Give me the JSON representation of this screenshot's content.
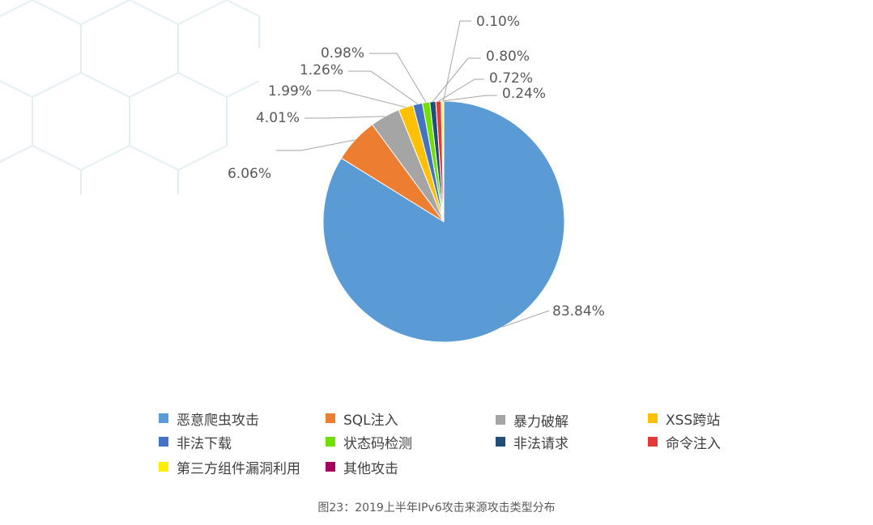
{
  "chart_data": {
    "type": "pie",
    "title": "",
    "caption": "图23：2019上半年IPv6攻击来源攻击类型分布",
    "legend_position": "bottom",
    "slices": [
      {
        "name": "恶意爬虫攻击",
        "value": 83.84,
        "label": "83.84%",
        "color": "#5b9bd5"
      },
      {
        "name": "SQL注入",
        "value": 6.06,
        "label": "6.06%",
        "color": "#ed7d31"
      },
      {
        "name": "暴力破解",
        "value": 4.01,
        "label": "4.01%",
        "color": "#a5a5a5"
      },
      {
        "name": "XSS跨站",
        "value": 1.99,
        "label": "1.99%",
        "color": "#ffc000"
      },
      {
        "name": "非法下载",
        "value": 1.26,
        "label": "1.26%",
        "color": "#4472c4"
      },
      {
        "name": "状态码检测",
        "value": 0.98,
        "label": "0.98%",
        "color": "#70e000"
      },
      {
        "name": "非法请求",
        "value": 0.8,
        "label": "0.80%",
        "color": "#1f4e79"
      },
      {
        "name": "命令注入",
        "value": 0.72,
        "label": "0.72%",
        "color": "#e53935"
      },
      {
        "name": "第三方组件漏洞利用",
        "value": 0.24,
        "label": "0.24%",
        "color": "#ffee00"
      },
      {
        "name": "其他攻击",
        "value": 0.1,
        "label": "0.10%",
        "color": "#a50060"
      }
    ]
  }
}
